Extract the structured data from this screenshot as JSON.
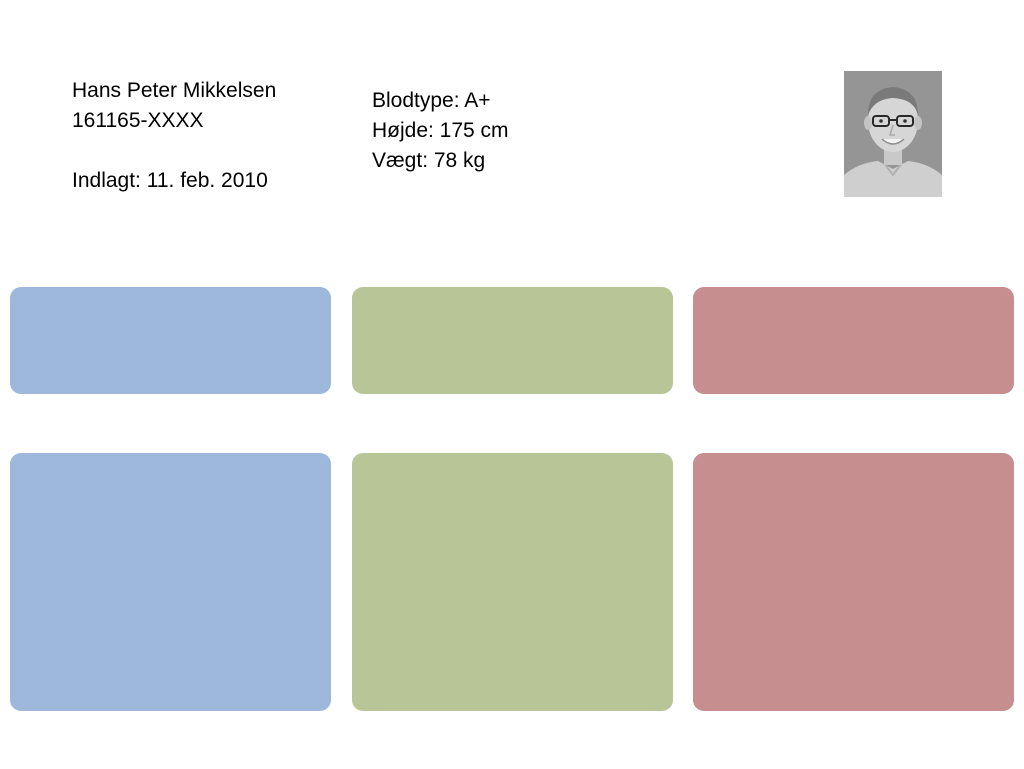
{
  "patient": {
    "name": "Hans Peter Mikkelsen",
    "cpr": "161165-XXXX",
    "admitted": "Indlagt: 11. feb. 2010"
  },
  "vitals": {
    "blood_type": "Blodtype: A+",
    "height": "Højde: 175 cm",
    "weight": "Vægt: 78 kg"
  },
  "photo": {
    "icon": "patient-photo"
  },
  "colors": {
    "blue": "#9db8db",
    "green": "#b8c697",
    "red": "#c68e8e"
  }
}
